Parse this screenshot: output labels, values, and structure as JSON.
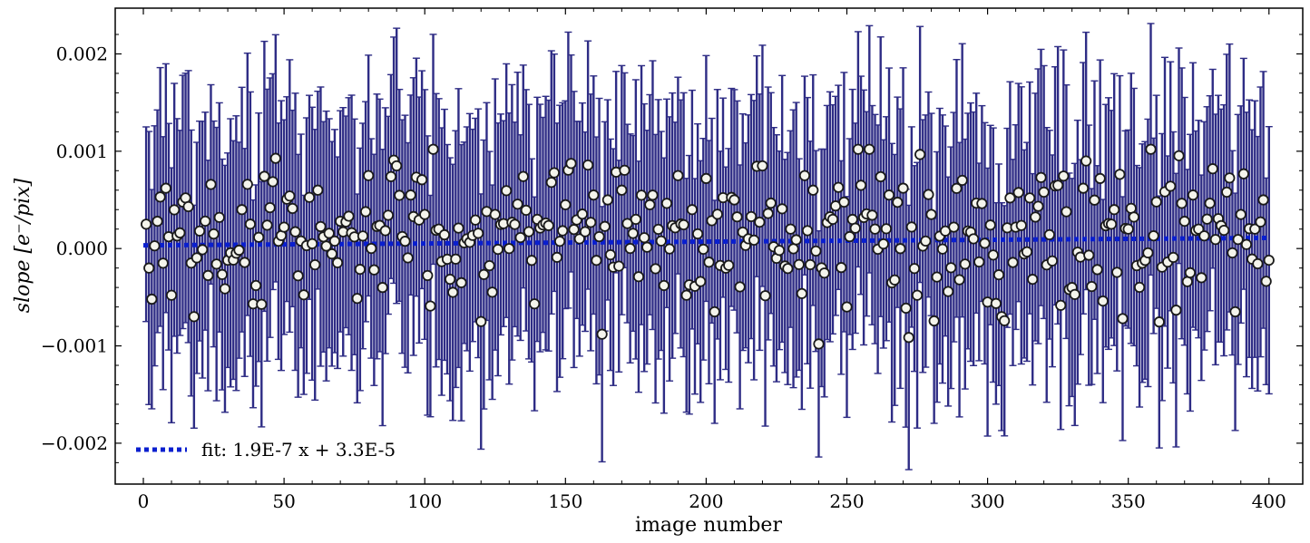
{
  "chart_data": {
    "type": "scatter",
    "title": "",
    "xlabel": "image number",
    "ylabel": "slope [e⁻/pix]",
    "xlim": [
      -10,
      412
    ],
    "ylim": [
      -0.00242,
      0.00247
    ],
    "xticks": [
      0,
      50,
      100,
      150,
      200,
      250,
      300,
      350,
      400
    ],
    "xtick_labels": [
      "0",
      "50",
      "100",
      "150",
      "200",
      "250",
      "300",
      "350",
      "400"
    ],
    "yticks": [
      -0.002,
      -0.001,
      0.0,
      0.001,
      0.002
    ],
    "ytick_labels": [
      "−0.002",
      "−0.001",
      "0.000",
      "0.001",
      "0.002"
    ],
    "grid": false,
    "legend": {
      "placement": "bottom-left",
      "entries": [
        "fit: 1.9E-7 x + 3.3E-5"
      ]
    },
    "n_points": 400,
    "errorbar_halfwidth_approx": 0.00125,
    "series": [
      {
        "type": "scatter-errorbar",
        "x_range": [
          1,
          400
        ],
        "values_sample": [
          [
            1,
            0.00025
          ],
          [
            2,
            -0.0002
          ],
          [
            3,
            -0.00052
          ],
          [
            5,
            0.00028
          ],
          [
            6,
            0.00053
          ],
          [
            8,
            0.00062
          ],
          [
            10,
            -0.00048
          ],
          [
            12,
            0.00013
          ],
          [
            15,
            0.00052
          ],
          [
            18,
            -0.0007
          ],
          [
            20,
            0.00018
          ],
          [
            25,
            0.00015
          ],
          [
            30,
            -0.00012
          ],
          [
            35,
            0.0004
          ],
          [
            37,
            0.00066
          ],
          [
            40,
            -0.00038
          ],
          [
            45,
            0.00042
          ],
          [
            50,
            0.00022
          ],
          [
            55,
            -0.00028
          ],
          [
            60,
            5e-05
          ],
          [
            62,
            0.0006
          ],
          [
            70,
            0.00028
          ],
          [
            75,
            0.00012
          ],
          [
            80,
            0.00075
          ],
          [
            85,
            -0.0004
          ],
          [
            90,
            0.00085
          ],
          [
            95,
            0.00055
          ],
          [
            100,
            0.00035
          ],
          [
            105,
            0.0002
          ],
          [
            110,
            -0.00045
          ],
          [
            115,
            0.0001
          ],
          [
            120,
            -0.00075
          ],
          [
            125,
            0.00035
          ],
          [
            130,
            0.0
          ],
          [
            135,
            0.00074
          ],
          [
            140,
            0.0003
          ],
          [
            145,
            0.00068
          ],
          [
            150,
            0.00045
          ],
          [
            155,
            0.0001
          ],
          [
            160,
            0.00055
          ],
          [
            163,
            -0.00088
          ],
          [
            165,
            0.0005
          ],
          [
            170,
            0.0006
          ],
          [
            175,
            0.0003
          ],
          [
            180,
            0.00045
          ],
          [
            185,
            -0.00038
          ],
          [
            190,
            0.00075
          ],
          [
            195,
            0.0004
          ],
          [
            200,
            0.00072
          ],
          [
            203,
            -0.00065
          ],
          [
            210,
            0.0005
          ],
          [
            215,
            0.0001
          ],
          [
            220,
            0.00085
          ],
          [
            225,
            -0.0001
          ],
          [
            230,
            0.0002
          ],
          [
            235,
            0.00075
          ],
          [
            238,
            0.0006
          ],
          [
            240,
            -0.00098
          ],
          [
            245,
            0.0003
          ],
          [
            250,
            -0.0006
          ],
          [
            255,
            0.00065
          ],
          [
            258,
            0.00102
          ],
          [
            260,
            0.0002
          ],
          [
            265,
            0.00055
          ],
          [
            270,
            0.00062
          ],
          [
            275,
            -0.00048
          ],
          [
            280,
            0.00035
          ],
          [
            285,
            0.00018
          ],
          [
            290,
            -0.00032
          ],
          [
            295,
            0.0001
          ],
          [
            300,
            -0.00055
          ],
          [
            305,
            -0.0007
          ],
          [
            308,
            0.00052
          ],
          [
            310,
            0.00022
          ],
          [
            315,
            0.00052
          ],
          [
            320,
            0.00058
          ],
          [
            325,
            0.00065
          ],
          [
            330,
            -0.0004
          ],
          [
            335,
            0.0009
          ],
          [
            340,
            0.00072
          ],
          [
            345,
            0.0004
          ],
          [
            348,
            -0.00072
          ],
          [
            350,
            0.0002
          ],
          [
            355,
            -0.00015
          ],
          [
            360,
            0.00048
          ],
          [
            365,
            0.00064
          ],
          [
            370,
            0.00028
          ],
          [
            373,
            0.00055
          ],
          [
            375,
            0.0002
          ],
          [
            380,
            0.00082
          ],
          [
            385,
            0.00058
          ],
          [
            388,
            -0.00065
          ],
          [
            390,
            0.00035
          ],
          [
            395,
            0.0002
          ],
          [
            398,
            0.0005
          ],
          [
            400,
            -0.00012
          ]
        ]
      },
      {
        "type": "line",
        "style": "dotted",
        "slope": 1.9e-07,
        "intercept": 3.3e-05,
        "x": [
          0,
          400
        ]
      }
    ],
    "colors": {
      "errorbar": "#2e2c85",
      "marker_fill": "#f4f4ec",
      "marker_edge": "#1a1a1a",
      "fit_line": "#0a1fcf"
    }
  }
}
